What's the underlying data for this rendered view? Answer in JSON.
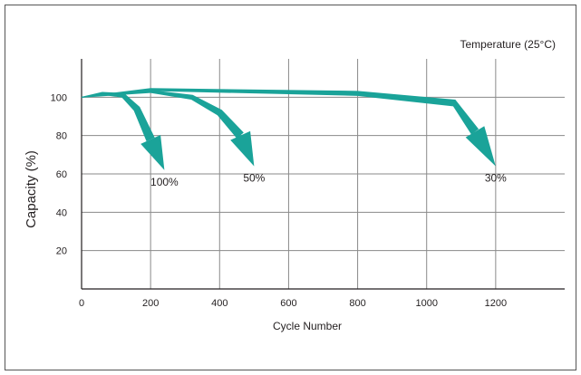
{
  "chart_data": {
    "type": "line",
    "title": "",
    "annotation": "Temperature  (25°C)",
    "xlabel": "Cycle Number",
    "ylabel": "Capacity  (%)",
    "xlim": [
      0,
      1400
    ],
    "ylim": [
      0,
      120
    ],
    "x_ticks": [
      0,
      200,
      400,
      600,
      800,
      1000,
      1200
    ],
    "y_ticks": [
      20,
      40,
      60,
      80,
      100
    ],
    "grid": true,
    "arrow_color": "#1aa399",
    "series": [
      {
        "name": "100%",
        "x": [
          0,
          60,
          120,
          160,
          200,
          240
        ],
        "y": [
          100,
          102,
          101,
          94,
          78,
          62
        ]
      },
      {
        "name": "50%",
        "x": [
          0,
          200,
          320,
          400,
          460,
          500
        ],
        "y": [
          100,
          103,
          100,
          92,
          80,
          64
        ]
      },
      {
        "name": "30%",
        "x": [
          0,
          200,
          800,
          1080,
          1140,
          1200
        ],
        "y": [
          100,
          104,
          102,
          97,
          82,
          64
        ]
      }
    ]
  }
}
